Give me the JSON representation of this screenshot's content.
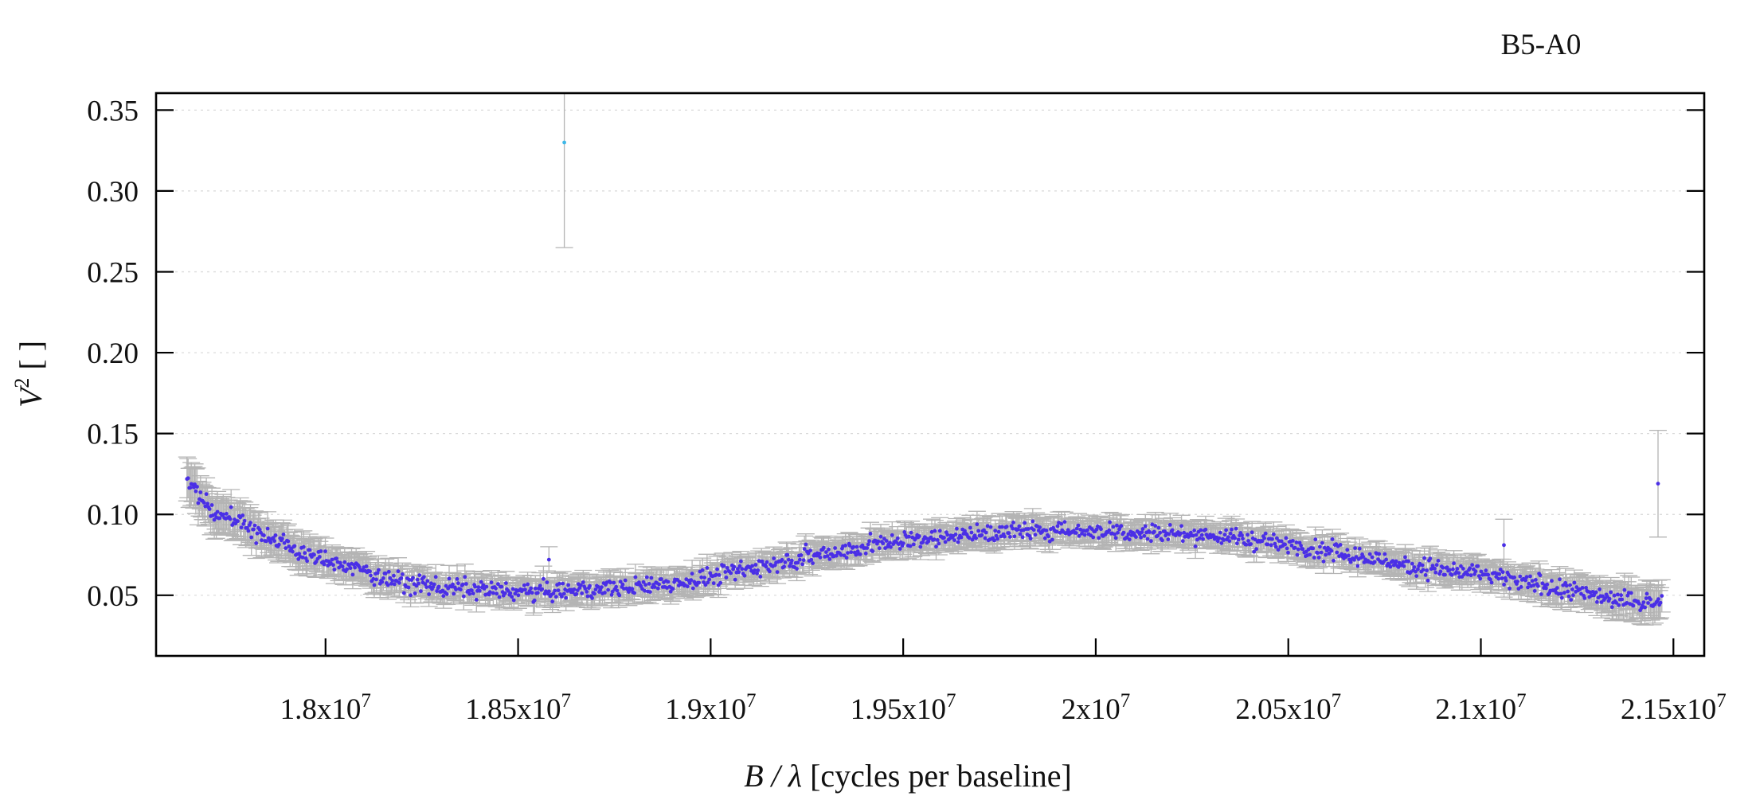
{
  "chart_data": {
    "type": "scatter",
    "title": "B5-A0",
    "xlabel_italic": "B / λ",
    "xlabel_unit": " [cycles per baseline]",
    "ylabel_italic": "V",
    "ylabel_sup": "2",
    "ylabel_unit": " [ ]",
    "xlim": [
      17560000,
      21580000
    ],
    "ylim": [
      0.0125,
      0.3605
    ],
    "y_ticks": [
      {
        "value": 0.05,
        "label": "0.05"
      },
      {
        "value": 0.1,
        "label": "0.10"
      },
      {
        "value": 0.15,
        "label": "0.15"
      },
      {
        "value": 0.2,
        "label": "0.20"
      },
      {
        "value": 0.25,
        "label": "0.25"
      },
      {
        "value": 0.3,
        "label": "0.30"
      },
      {
        "value": 0.35,
        "label": "0.35"
      }
    ],
    "x_ticks": [
      {
        "value": 18000000,
        "mantissa": "1.8x10",
        "exp": "7"
      },
      {
        "value": 18500000,
        "mantissa": "1.85x10",
        "exp": "7"
      },
      {
        "value": 19000000,
        "mantissa": "1.9x10",
        "exp": "7"
      },
      {
        "value": 19500000,
        "mantissa": "1.95x10",
        "exp": "7"
      },
      {
        "value": 20000000,
        "mantissa": "2x10",
        "exp": "7"
      },
      {
        "value": 20500000,
        "mantissa": "2.05x10",
        "exp": "7"
      },
      {
        "value": 21000000,
        "mantissa": "2.1x10",
        "exp": "7"
      },
      {
        "value": 21500000,
        "mantissa": "2.15x10",
        "exp": "7"
      }
    ],
    "grid": "horizontal dotted",
    "colors": {
      "points": "#4a2fe6",
      "outlier": "#3fb8e8",
      "errorbars": "#b4b4b4"
    },
    "trend": {
      "x": [
        17640000,
        17700000,
        17800000,
        17900000,
        18000000,
        18100000,
        18200000,
        18350000,
        18500000,
        18650000,
        18800000,
        18950000,
        19100000,
        19250000,
        19400000,
        19550000,
        19700000,
        19850000,
        20000000,
        20150000,
        20300000,
        20450000,
        20600000,
        20750000,
        20900000,
        21000000,
        21100000,
        21200000,
        21300000,
        21400000,
        21470000
      ],
      "y": [
        0.122,
        0.104,
        0.092,
        0.08,
        0.071,
        0.065,
        0.058,
        0.054,
        0.052,
        0.053,
        0.055,
        0.059,
        0.066,
        0.074,
        0.08,
        0.085,
        0.088,
        0.09,
        0.09,
        0.089,
        0.087,
        0.083,
        0.077,
        0.071,
        0.066,
        0.063,
        0.058,
        0.054,
        0.05,
        0.046,
        0.046
      ],
      "err": [
        0.012,
        0.011,
        0.01,
        0.009,
        0.008,
        0.008,
        0.007,
        0.007,
        0.007,
        0.007,
        0.007,
        0.007,
        0.007,
        0.007,
        0.007,
        0.007,
        0.007,
        0.007,
        0.007,
        0.007,
        0.007,
        0.007,
        0.007,
        0.007,
        0.007,
        0.007,
        0.007,
        0.008,
        0.008,
        0.009,
        0.01
      ],
      "point_count": 1300,
      "scatter": 0.004
    },
    "outliers": [
      {
        "x": 18620000,
        "y": 0.33,
        "err": 0.065,
        "color": "outlier"
      },
      {
        "x": 21460000,
        "y": 0.119,
        "err": 0.033,
        "color": "points"
      },
      {
        "x": 21060000,
        "y": 0.081,
        "err": 0.016,
        "color": "points"
      },
      {
        "x": 18580000,
        "y": 0.072,
        "err": 0.008,
        "color": "points"
      }
    ]
  }
}
